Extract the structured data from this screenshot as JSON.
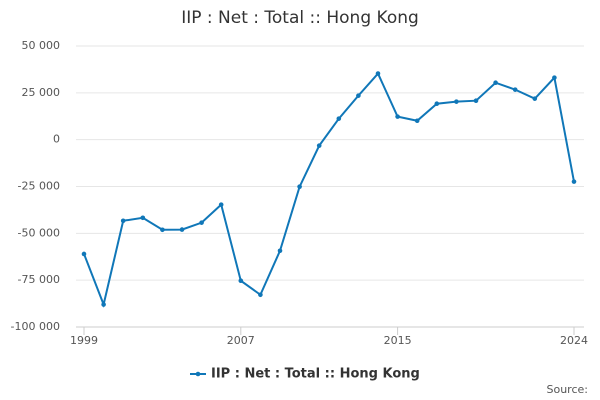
{
  "chart_data": {
    "type": "line",
    "title": "IIP : Net : Total :: Hong Kong",
    "x": [
      1999,
      2000,
      2001,
      2002,
      2003,
      2004,
      2005,
      2006,
      2007,
      2008,
      2009,
      2010,
      2011,
      2012,
      2013,
      2014,
      2015,
      2016,
      2017,
      2018,
      2019,
      2020,
      2021,
      2022,
      2023,
      2024
    ],
    "series": [
      {
        "name": "IIP : Net : Total :: Hong Kong",
        "color": "#1077b8",
        "values": [
          -61000,
          -88000,
          -43300,
          -41700,
          -48100,
          -48000,
          -44300,
          -34700,
          -75300,
          -82800,
          -59300,
          -25100,
          -3200,
          11200,
          23500,
          35300,
          12300,
          10100,
          19200,
          20300,
          20800,
          30400,
          26700,
          21900,
          33100,
          -22400
        ]
      }
    ],
    "xlim": [
      1999,
      2024
    ],
    "xticks": [
      1999,
      2007,
      2015,
      2024
    ],
    "ylim": [
      -100000,
      50000
    ],
    "yticks": [
      {
        "value": -100000,
        "label": "-100 000"
      },
      {
        "value": -75000,
        "label": "-75 000"
      },
      {
        "value": -50000,
        "label": "-50 000"
      },
      {
        "value": -25000,
        "label": "-25 000"
      },
      0,
      {
        "value": 25000,
        "label": "25 000"
      },
      {
        "value": 50000,
        "label": "50 000"
      }
    ],
    "grid": true,
    "legend": "bottom",
    "source": "Source:"
  }
}
